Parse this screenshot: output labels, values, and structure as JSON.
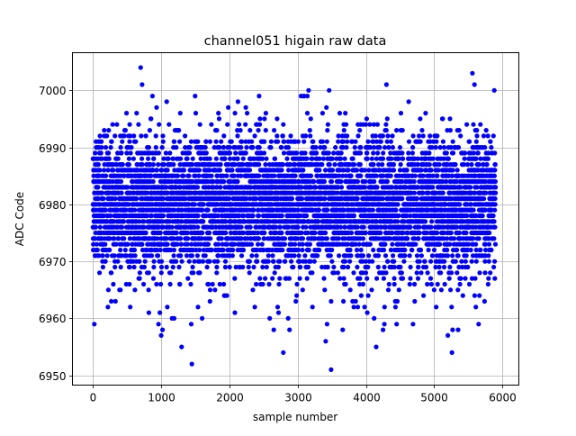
{
  "chart_data": {
    "type": "scatter",
    "title": "channel051 higain raw data",
    "xlabel": "sample number",
    "ylabel": "ADC Code",
    "xlim": [
      -300,
      6240
    ],
    "ylim": [
      6948.3,
      7006.6
    ],
    "xticks": [
      0,
      1000,
      2000,
      3000,
      4000,
      5000,
      6000
    ],
    "yticks": [
      6950,
      6960,
      6970,
      6980,
      6990,
      7000
    ],
    "grid": true,
    "marker_color": "#0000ff",
    "series": [
      {
        "name": "raw data",
        "distribution": {
          "n_samples": 5900,
          "x_start": 0,
          "x_step": 1,
          "mean": 6980,
          "std": 6,
          "min": 6962,
          "max": 6999,
          "integer_valued": true
        },
        "outliers": [
          [
            20,
            6959
          ],
          [
            220,
            6962
          ],
          [
            270,
            6963
          ],
          [
            330,
            6963
          ],
          [
            820,
            6961
          ],
          [
            960,
            6959
          ],
          [
            980,
            6961
          ],
          [
            1000,
            6957
          ],
          [
            1020,
            6958
          ],
          [
            1090,
            6962
          ],
          [
            1160,
            6960
          ],
          [
            1190,
            6960
          ],
          [
            1300,
            6955
          ],
          [
            1440,
            6959
          ],
          [
            1450,
            6952
          ],
          [
            1540,
            6962
          ],
          [
            1600,
            6960
          ],
          [
            2080,
            6961
          ],
          [
            2590,
            6960
          ],
          [
            2650,
            6958
          ],
          [
            2720,
            6961
          ],
          [
            2790,
            6954
          ],
          [
            2860,
            6960
          ],
          [
            2880,
            6958
          ],
          [
            3410,
            6956
          ],
          [
            3430,
            6959
          ],
          [
            3490,
            6951
          ],
          [
            3660,
            6958
          ],
          [
            4020,
            6961
          ],
          [
            4120,
            6960
          ],
          [
            4150,
            6955
          ],
          [
            4250,
            6958
          ],
          [
            4270,
            6959
          ],
          [
            4450,
            6959
          ],
          [
            4690,
            6959
          ],
          [
            5200,
            6957
          ],
          [
            5260,
            6954
          ],
          [
            5270,
            6958
          ],
          [
            5350,
            6958
          ],
          [
            5650,
            6959
          ],
          [
            700,
            7004
          ],
          [
            720,
            7001
          ],
          [
            3160,
            7000
          ],
          [
            3460,
            7000
          ],
          [
            4300,
            7001
          ],
          [
            5560,
            7003
          ],
          [
            5590,
            7001
          ],
          [
            5880,
            7000
          ]
        ]
      }
    ]
  }
}
